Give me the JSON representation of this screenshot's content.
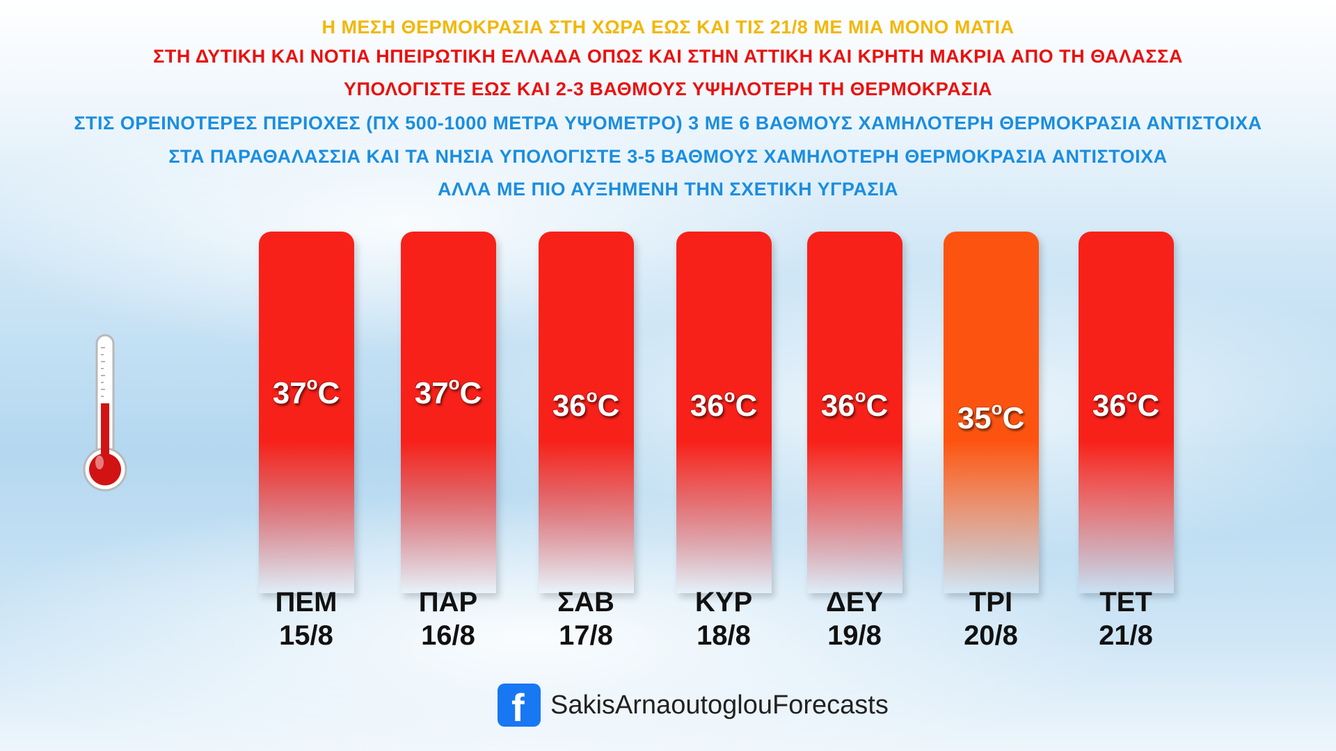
{
  "headlines": {
    "line1": "Η ΜΕΣΗ ΘΕΡΜΟΚΡΑΣΙΑ ΣΤΗ ΧΩΡΑ ΕΩΣ ΚΑΙ ΤΙΣ 21/8 ΜΕ ΜΙΑ ΜΟΝΟ ΜΑΤΙΑ",
    "line2": "ΣΤΗ ΔΥΤΙΚΗ ΚΑΙ ΝΟΤΙΑ ΗΠΕΙΡΩΤΙΚΗ ΕΛΛΑΔΑ ΟΠΩΣ ΚΑΙ ΣΤΗΝ ΑΤΤΙΚΗ ΚΑΙ ΚΡΗΤΗ ΜΑΚΡΙΑ ΑΠΟ ΤΗ ΘΑΛΑΣΣΑ",
    "line3": "ΥΠΟΛΟΓΙΣΤΕ ΕΩΣ ΚΑΙ 2-3 ΒΑΘΜΟΥΣ ΥΨΗΛΟΤΕΡΗ ΤΗ ΘΕΡΜΟΚΡΑΣΙΑ",
    "line4": "ΣΤΙΣ ΟΡΕΙΝΟΤΕΡΕΣ ΠΕΡΙΟΧΕΣ (ΠΧ 500-1000 ΜΕΤΡΑ ΥΨΟΜΕΤΡΟ) 3 ΜΕ 6 ΒΑΘΜΟΥΣ ΧΑΜΗΛΟΤΕΡΗ ΘΕΡΜΟΚΡΑΣΙΑ ΑΝΤΙΣΤΟΙΧΑ",
    "line5": "ΣΤΑ ΠΑΡΑΘΑΛΑΣΣΙΑ ΚΑΙ ΤΑ ΝΗΣΙΑ ΥΠΟΛΟΓΙΣΤΕ 3-5 ΒΑΘΜΟΥΣ ΧΑΜΗΛΟΤΕΡΗ ΘΕΡΜΟΚΡΑΣΙΑ ΑΝΤΙΣΤΟΙΧΑ",
    "line6": "ΑΛΛΑ ΜΕ ΠΙΟ ΑΥΞΗΜΕΝΗ ΤΗΝ ΣΧΕΤΙΚΗ ΥΓΡΑΣΙΑ"
  },
  "colors": {
    "hot": "#f72119",
    "warm": "#fc5410"
  },
  "chart_data": {
    "type": "bar",
    "categories": [
      "ΠΕΜ 15/8",
      "ΠΑΡ 16/8",
      "ΣΑΒ 17/8",
      "ΚΥΡ 18/8",
      "ΔΕΥ 19/8",
      "ΤΡΙ 20/8",
      "ΤΕΤ 21/8"
    ],
    "days": [
      {
        "day": "ΠΕΜ",
        "date": "15/8",
        "value": 37,
        "label": "37",
        "unit": "C",
        "color": "#f72119"
      },
      {
        "day": "ΠΑΡ",
        "date": "16/8",
        "value": 37,
        "label": "37",
        "unit": "C",
        "color": "#f72119"
      },
      {
        "day": "ΣΑΒ",
        "date": "17/8",
        "value": 36,
        "label": "36",
        "unit": "C",
        "color": "#f72119"
      },
      {
        "day": "ΚΥΡ",
        "date": "18/8",
        "value": 36,
        "label": "36",
        "unit": "C",
        "color": "#f72119"
      },
      {
        "day": "ΔΕΥ",
        "date": "19/8",
        "value": 36,
        "label": "36",
        "unit": "C",
        "color": "#f72119"
      },
      {
        "day": "ΤΡΙ",
        "date": "20/8",
        "value": 35,
        "label": "35",
        "unit": "C",
        "color": "#fc5410"
      },
      {
        "day": "ΤΕΤ",
        "date": "21/8",
        "value": 36,
        "label": "36",
        "unit": "C",
        "color": "#f72119"
      }
    ],
    "values": [
      37,
      37,
      36,
      36,
      36,
      35,
      36
    ],
    "degree_mark": "o"
  },
  "footer": {
    "icon": "facebook-icon",
    "icon_glyph": "f",
    "page_name": "SakisArnaoutoglouForecasts"
  },
  "decor": {
    "thermometer": "thermometer-icon"
  }
}
